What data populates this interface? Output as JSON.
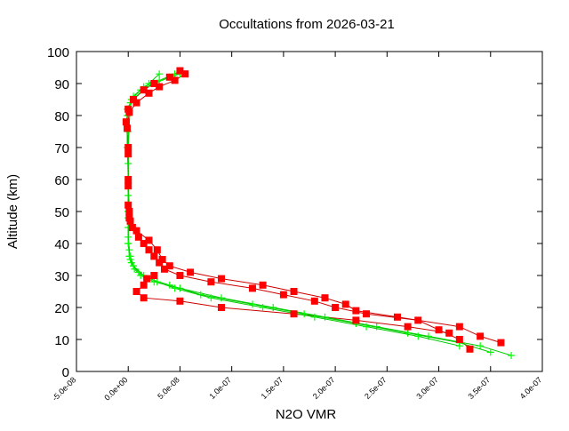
{
  "chart_data": {
    "type": "line",
    "title": "Occultations from 2026-03-21",
    "xlabel": "N2O VMR",
    "ylabel": "Altitude (km)",
    "xlim": [
      -5e-08,
      4e-07
    ],
    "ylim": [
      0,
      100
    ],
    "xticks": [
      "-5.0e-08",
      "0.0e+00",
      "5.0e-08",
      "1.0e-07",
      "1.5e-07",
      "2.0e-07",
      "2.5e-07",
      "3.0e-07",
      "3.5e-07",
      "4.0e-07"
    ],
    "yticks": [
      "0",
      "10",
      "20",
      "30",
      "40",
      "50",
      "60",
      "70",
      "80",
      "90",
      "100"
    ],
    "grid": false,
    "series": [
      {
        "marker": "square",
        "color": "#ff0000",
        "line_color": "#cc0000",
        "profiles": [
          {
            "alt": [
              7,
              10,
              13,
              16,
              18,
              20,
              22,
              24,
              26,
              28,
              30,
              32,
              34,
              36,
              38,
              40,
              42,
              45,
              48,
              52,
              60,
              70,
              78,
              82,
              85,
              88,
              90,
              92,
              94
            ],
            "vmr": [
              3.3e-07,
              3.2e-07,
              3e-07,
              2.8e-07,
              2.3e-07,
              2e-07,
              1.8e-07,
              1.5e-07,
              1.2e-07,
              8e-08,
              5e-08,
              3.5e-08,
              3e-08,
              2.5e-08,
              2e-08,
              1.5e-08,
              1e-08,
              4e-09,
              1e-09,
              0,
              0,
              0,
              -2e-09,
              0,
              5e-09,
              1.5e-08,
              2.5e-08,
              4e-08,
              5e-08
            ]
          },
          {
            "alt": [
              9,
              11,
              14,
              17,
              19,
              21,
              23,
              25,
              27,
              29,
              31,
              33,
              35,
              38,
              41,
              44,
              47,
              50,
              58,
              68,
              76,
              81,
              84,
              87,
              89,
              91,
              93
            ],
            "vmr": [
              3.6e-07,
              3.4e-07,
              3.2e-07,
              2.6e-07,
              2.2e-07,
              2.1e-07,
              1.9e-07,
              1.6e-07,
              1.3e-07,
              9e-08,
              6e-08,
              4e-08,
              3.3e-08,
              2.8e-08,
              2e-08,
              8e-09,
              2e-09,
              1e-09,
              0,
              0,
              -1e-09,
              1e-09,
              8e-09,
              2e-08,
              3e-08,
              4.5e-08,
              5.5e-08
            ]
          },
          {
            "alt": [
              12,
              14,
              16,
              18,
              20,
              22,
              23,
              25,
              27,
              29,
              30
            ],
            "vmr": [
              3.1e-07,
              2.7e-07,
              2.2e-07,
              1.6e-07,
              9e-08,
              5e-08,
              1.5e-08,
              8e-09,
              1.5e-08,
              1.8e-08,
              2.5e-08
            ]
          }
        ]
      },
      {
        "marker": "plus",
        "color": "#00ff00",
        "line_color": "#00cc00",
        "profiles": [
          {
            "alt": [
              5,
              8,
              11,
              14,
              17,
              20,
              23,
              26,
              28,
              30,
              32,
              34,
              36,
              40,
              45,
              50,
              60,
              70,
              80,
              85,
              88,
              90,
              92,
              93
            ],
            "vmr": [
              3.7e-07,
              3.4e-07,
              2.9e-07,
              2.4e-07,
              1.9e-07,
              1.4e-07,
              9e-08,
              5e-08,
              2.5e-08,
              1.2e-08,
              6e-09,
              3e-09,
              1e-09,
              0,
              0,
              0,
              0,
              -1e-09,
              -1e-09,
              3e-09,
              1.2e-08,
              2.5e-08,
              4e-08,
              5e-08
            ]
          },
          {
            "alt": [
              6,
              9,
              12,
              15,
              18,
              21,
              24,
              27,
              29,
              31,
              33,
              35,
              38,
              42,
              48,
              55,
              65,
              75,
              82,
              86,
              89,
              91,
              93
            ],
            "vmr": [
              3.5e-07,
              3.2e-07,
              2.7e-07,
              2.2e-07,
              1.7e-07,
              1.2e-07,
              7e-08,
              4e-08,
              2e-08,
              1e-08,
              5e-09,
              2e-09,
              1e-09,
              0,
              0,
              0,
              0,
              0,
              -1e-09,
              5e-09,
              1.5e-08,
              3e-08,
              4.5e-08
            ]
          },
          {
            "alt": [
              8,
              11,
              14,
              17,
              20,
              23,
              26,
              28,
              30,
              33,
              36,
              40,
              50,
              70,
              84,
              90,
              93
            ],
            "vmr": [
              3.2e-07,
              2.8e-07,
              2.3e-07,
              1.8e-07,
              1.3e-07,
              8e-08,
              4.5e-08,
              2.8e-08,
              1.5e-08,
              5e-09,
              2e-09,
              0,
              0,
              0,
              2e-09,
              2e-08,
              3e-08
            ]
          }
        ]
      }
    ]
  }
}
